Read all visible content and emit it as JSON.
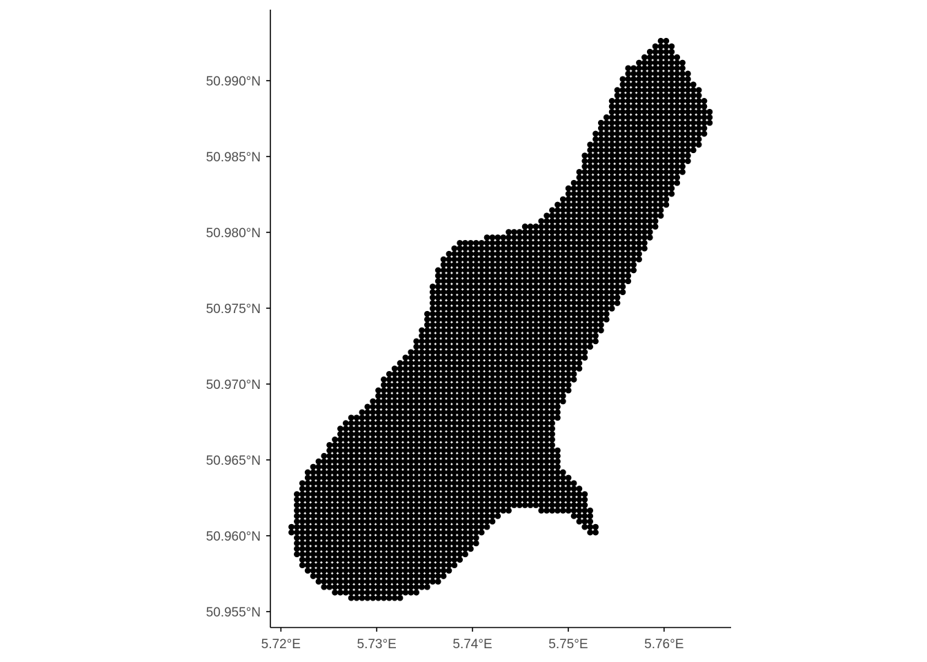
{
  "chart_data": {
    "type": "scatter",
    "title": "",
    "xlabel": "",
    "ylabel": "",
    "xlim": [
      5.7189,
      5.767
    ],
    "ylim": [
      50.95395,
      50.99468
    ],
    "grid": false,
    "point_color": "#000000",
    "axis_color": "#000000",
    "tick_label_color": "#4d4d4d",
    "x_ticks": [
      {
        "value": 5.72,
        "label": "5.72°E"
      },
      {
        "value": 5.73,
        "label": "5.73°E"
      },
      {
        "value": 5.74,
        "label": "5.74°E"
      },
      {
        "value": 5.75,
        "label": "5.75°E"
      },
      {
        "value": 5.76,
        "label": "5.76°E"
      }
    ],
    "y_ticks": [
      {
        "value": 50.955,
        "label": "50.955°N"
      },
      {
        "value": 50.96,
        "label": "50.960°N"
      },
      {
        "value": 50.965,
        "label": "50.965°N"
      },
      {
        "value": 50.97,
        "label": "50.970°N"
      },
      {
        "value": 50.975,
        "label": "50.975°N"
      },
      {
        "value": 50.98,
        "label": "50.980°N"
      },
      {
        "value": 50.985,
        "label": "50.985°N"
      },
      {
        "value": 50.99,
        "label": "50.990°N"
      }
    ],
    "grid_points": {
      "lon_spacing": 0.000567,
      "lat_spacing": 0.00036,
      "lon_origin": 5.7211,
      "lat_origin": 50.9559,
      "region_boundary": [
        [
          5.7598,
          50.993
        ],
        [
          5.7616,
          50.9917
        ],
        [
          5.7623,
          50.9908
        ],
        [
          5.7635,
          50.9896
        ],
        [
          5.7645,
          50.9885
        ],
        [
          5.7652,
          50.9877
        ],
        [
          5.7641,
          50.9862
        ],
        [
          5.763,
          50.9851
        ],
        [
          5.7619,
          50.9837
        ],
        [
          5.7609,
          50.9826
        ],
        [
          5.7598,
          50.9812
        ],
        [
          5.7587,
          50.9799
        ],
        [
          5.7576,
          50.9783
        ],
        [
          5.7565,
          50.9769
        ],
        [
          5.7551,
          50.9753
        ],
        [
          5.7537,
          50.9737
        ],
        [
          5.7522,
          50.9721
        ],
        [
          5.7508,
          50.9703
        ],
        [
          5.7497,
          50.969
        ],
        [
          5.7488,
          50.9676
        ],
        [
          5.7488,
          50.9662
        ],
        [
          5.749,
          50.9651
        ],
        [
          5.7497,
          50.9642
        ],
        [
          5.7508,
          50.9635
        ],
        [
          5.7519,
          50.9626
        ],
        [
          5.7526,
          50.9615
        ],
        [
          5.7531,
          50.9601
        ],
        [
          5.7521,
          50.9601
        ],
        [
          5.7512,
          50.9608
        ],
        [
          5.7497,
          50.9615
        ],
        [
          5.7476,
          50.9616
        ],
        [
          5.7461,
          50.9618
        ],
        [
          5.7447,
          50.9618
        ],
        [
          5.7436,
          50.9615
        ],
        [
          5.7425,
          50.961
        ],
        [
          5.7414,
          50.9603
        ],
        [
          5.7404,
          50.9594
        ],
        [
          5.7393,
          50.9586
        ],
        [
          5.7368,
          50.9571
        ],
        [
          5.7346,
          50.9563
        ],
        [
          5.7324,
          50.9558
        ],
        [
          5.7274,
          50.9558
        ],
        [
          5.7253,
          50.9562
        ],
        [
          5.7238,
          50.9569
        ],
        [
          5.7224,
          50.9578
        ],
        [
          5.7215,
          50.959
        ],
        [
          5.7209,
          50.9603
        ],
        [
          5.7215,
          50.9615
        ],
        [
          5.7217,
          50.963
        ],
        [
          5.7224,
          50.964
        ],
        [
          5.7238,
          50.9649
        ],
        [
          5.7253,
          50.9662
        ],
        [
          5.7267,
          50.9676
        ],
        [
          5.7281,
          50.968
        ],
        [
          5.7299,
          50.9692
        ],
        [
          5.7303,
          50.9701
        ],
        [
          5.7317,
          50.971
        ],
        [
          5.7332,
          50.972
        ],
        [
          5.7342,
          50.973
        ],
        [
          5.7352,
          50.9746
        ],
        [
          5.7357,
          50.9762
        ],
        [
          5.7364,
          50.9778
        ],
        [
          5.7382,
          50.9793
        ],
        [
          5.7411,
          50.9796
        ],
        [
          5.7432,
          50.98
        ],
        [
          5.7454,
          50.9804
        ],
        [
          5.7472,
          50.9809
        ],
        [
          5.7486,
          50.9819
        ],
        [
          5.7501,
          50.983
        ],
        [
          5.7512,
          50.9842
        ],
        [
          5.7519,
          50.9855
        ],
        [
          5.7526,
          50.9866
        ],
        [
          5.754,
          50.9878
        ],
        [
          5.7548,
          50.9894
        ],
        [
          5.7562,
          50.9908
        ],
        [
          5.758,
          50.9919
        ]
      ]
    }
  }
}
